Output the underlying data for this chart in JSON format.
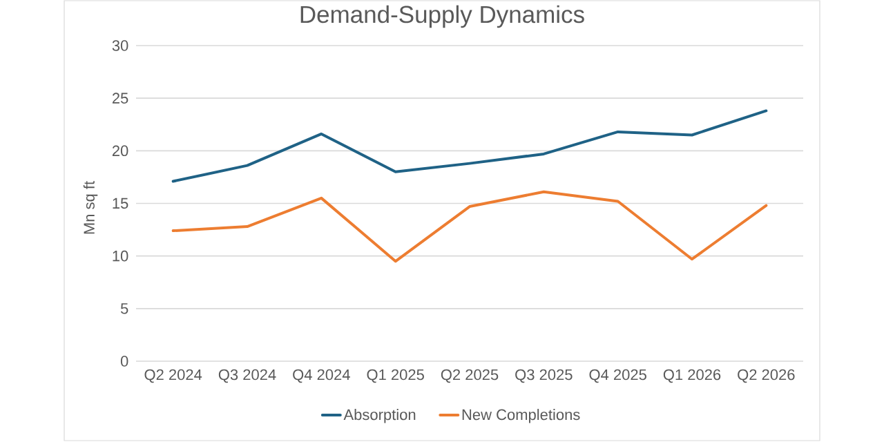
{
  "chart_data": {
    "type": "line",
    "title": "Demand-Supply Dynamics",
    "ylabel": "Mn sq ft",
    "categories": [
      "Q2 2024",
      "Q3 2024",
      "Q4 2024",
      "Q1 2025",
      "Q2 2025",
      "Q3 2025",
      "Q4 2025",
      "Q1 2026",
      "Q2 2026"
    ],
    "series": [
      {
        "name": "Absorption",
        "color": "#1f6286",
        "values": [
          17.1,
          18.6,
          21.6,
          18.0,
          18.8,
          19.7,
          21.8,
          21.5,
          23.8
        ]
      },
      {
        "name": "New Completions",
        "color": "#ed7d31",
        "values": [
          12.4,
          12.8,
          15.5,
          9.5,
          14.7,
          16.1,
          15.2,
          9.7,
          14.8
        ]
      }
    ],
    "ylim": [
      0,
      30
    ],
    "yticks": [
      0,
      5,
      10,
      15,
      20,
      25,
      30
    ],
    "grid": "y",
    "legend": "bottom",
    "line_style": "solid"
  }
}
